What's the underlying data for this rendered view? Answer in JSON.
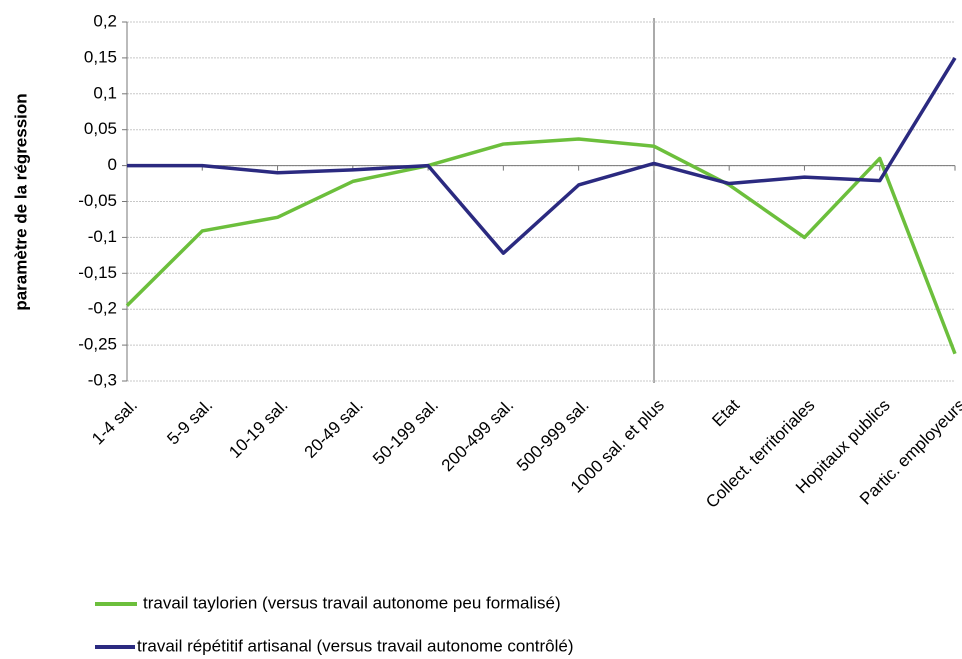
{
  "chart_data": {
    "type": "line",
    "y_label": "paramètre de la régression",
    "categories": [
      "1-4 sal.",
      "5-9 sal.",
      "10-19 sal.",
      "20-49 sal.",
      "50-199 sal.",
      "200-499 sal.",
      "500-999 sal.",
      "1000 sal.  et plus",
      "Etat",
      "Collect. territoriales",
      "Hopitaux publics",
      "Partic. employeurs"
    ],
    "series": [
      {
        "name": "travail taylorien (versus travail autonome peu formalisé)",
        "color": "#6cbf3c",
        "values": [
          -0.195,
          -0.091,
          -0.072,
          -0.022,
          0,
          0.03,
          0.037,
          0.027,
          -0.027,
          -0.1,
          0.01,
          -0.262
        ]
      },
      {
        "name": "travail répétitif artisanal (versus travail autonome contrôlé)",
        "color": "#2b2a80",
        "values": [
          0,
          0,
          -0.01,
          -0.006,
          0,
          -0.122,
          -0.027,
          0.003,
          -0.025,
          -0.016,
          -0.021,
          0.15
        ]
      }
    ],
    "ylim": [
      -0.3,
      0.2
    ],
    "yticks": [
      {
        "value": -0.3,
        "label": "-0,3"
      },
      {
        "value": -0.25,
        "label": "-0,25"
      },
      {
        "value": -0.2,
        "label": "-0,2"
      },
      {
        "value": -0.15,
        "label": "-0,15"
      },
      {
        "value": -0.1,
        "label": "-0,1"
      },
      {
        "value": -0.05,
        "label": "-0,05"
      },
      0,
      {
        "value": 0.05,
        "label": "0,05"
      },
      {
        "value": 0.1,
        "label": "0,1"
      },
      {
        "value": 0.15,
        "label": "0,15"
      },
      {
        "value": 0.2,
        "label": "0,2"
      }
    ],
    "grid": true
  }
}
